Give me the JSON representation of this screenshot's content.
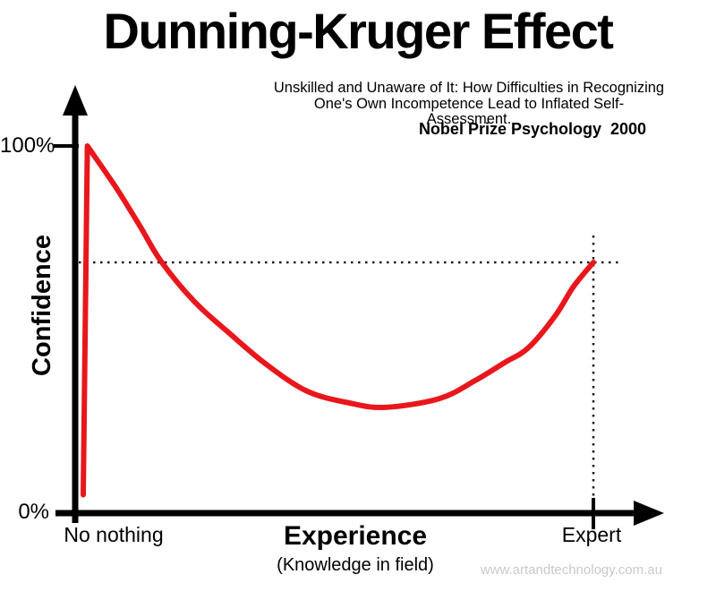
{
  "header": {
    "title": "Dunning-Kruger Effect",
    "subtitle_line1": "Unskilled and Unaware of It: How Difficulties in Recognizing",
    "subtitle_line2": "One's Own Incompetence Lead to Inflated Self-Assessment.",
    "attribution": "Nobel Prize Psychology  2000"
  },
  "chart_data": {
    "type": "line",
    "title": "Dunning-Kruger Effect",
    "xlabel": "Experience",
    "xlabel_sub": "(Knowledge in field)",
    "ylabel": "Confidence",
    "x_ticks": [
      "No nothing",
      "Expert"
    ],
    "y_ticks": [
      "0%",
      "100%"
    ],
    "xlim": [
      0,
      100
    ],
    "ylim": [
      0,
      100
    ],
    "grid": false,
    "legend": "none",
    "series": [
      {
        "name": "confidence-vs-experience",
        "color": "#e8171c",
        "points": [
          [
            0,
            5
          ],
          [
            0.8,
            100
          ],
          [
            6.5,
            88.5
          ],
          [
            11.2,
            78
          ],
          [
            15.3,
            68.5
          ],
          [
            21.8,
            57.6
          ],
          [
            28.8,
            48.8
          ],
          [
            35.9,
            40.5
          ],
          [
            43.9,
            33.2
          ],
          [
            52.2,
            30
          ],
          [
            59.2,
            28.8
          ],
          [
            69.8,
            31.2
          ],
          [
            76.8,
            36.1
          ],
          [
            82.6,
            41
          ],
          [
            87.3,
            45.1
          ],
          [
            92.6,
            53.9
          ],
          [
            96.1,
            61.7
          ],
          [
            100,
            68.3
          ]
        ]
      }
    ],
    "annotations": {
      "peak_confidence_pct": 100,
      "valley_confidence_pct": 28.8,
      "expert_confidence_pct": 68.3,
      "expert_x_pct": 100
    }
  },
  "footer": {
    "watermark": "www.artandtechnology.com.au"
  },
  "colors": {
    "curve": "#e8171c",
    "axis": "#000000",
    "dotted": "#1a1a1a",
    "watermark": "#c9c9c9"
  }
}
